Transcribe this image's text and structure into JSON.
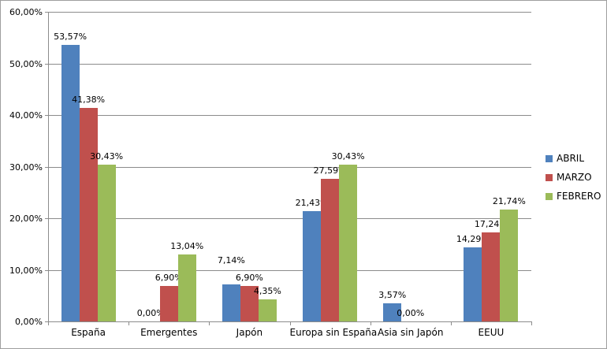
{
  "chart_data": {
    "type": "bar",
    "title": "",
    "categories": [
      "España",
      "Emergentes",
      "Japón",
      "Europa sin España",
      "Asia sin Japón",
      "EEUU"
    ],
    "series": [
      {
        "name": "ABRIL",
        "color": "#4F81BD",
        "values": [
          53.57,
          0.0,
          7.14,
          21.43,
          3.57,
          14.29
        ],
        "labels": [
          "53,57%",
          "0,00%",
          "7,14%",
          "21,43%",
          "3,57%",
          "14,29%"
        ]
      },
      {
        "name": "MARZO",
        "color": "#C0504D",
        "values": [
          41.38,
          6.9,
          6.9,
          27.59,
          0.0,
          17.24
        ],
        "labels": [
          "41,38%",
          "6,90%",
          "6,90%",
          "27,59%",
          "0,00%",
          "17,24%"
        ]
      },
      {
        "name": "FEBRERO",
        "color": "#9BBB59",
        "values": [
          30.43,
          13.04,
          4.35,
          30.43,
          0.0,
          21.74
        ],
        "labels": [
          "30,43%",
          "13,04%",
          "4,35%",
          "30,43%",
          null,
          "21,74%"
        ]
      }
    ],
    "y_axis": {
      "min": 0,
      "max": 60,
      "step": 10,
      "tick_labels": [
        "0,00%",
        "10,00%",
        "20,00%",
        "30,00%",
        "40,00%",
        "50,00%",
        "60,00%"
      ]
    },
    "xlabel": "",
    "ylabel": "",
    "grid": true,
    "legend": {
      "position": "right",
      "entries": [
        "ABRIL",
        "MARZO",
        "FEBRERO"
      ]
    }
  },
  "colors": {
    "gridline": "#8c8c8c",
    "axis": "#8c8c8c",
    "background": "#ffffff",
    "border": "#9e9e9e",
    "text": "#000000",
    "series_abril": "#4F81BD",
    "series_marzo": "#C0504D",
    "series_febrero": "#9BBB59"
  }
}
